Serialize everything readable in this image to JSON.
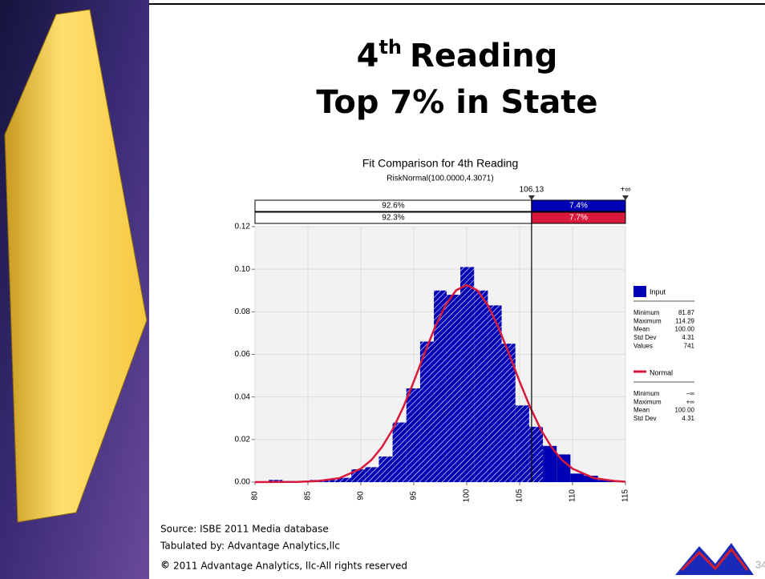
{
  "slide": {
    "title": {
      "ordinal": "4",
      "suffix": "th",
      "rest": "Reading",
      "line2": "Top 7% in State"
    },
    "source": "Source: ISBE 2011 Media database",
    "tabulated": "Tabulated by: Advantage Analytics,llc",
    "copyright_symbol": "©",
    "copyright": "2011 Advantage Analytics, llc-All rights reserved",
    "page_number": "34"
  },
  "chart_data": {
    "type": "histogram",
    "title": "Fit Comparison for 4th Reading",
    "subtitle": "RiskNormal(100.0000,4.3071)",
    "bins": [
      80,
      81.3,
      82.6,
      83.9,
      85.2,
      86.5,
      87.8,
      89.1,
      90.4,
      91.7,
      93,
      94.3,
      95.6,
      96.9,
      98.1,
      99.4,
      100.7,
      102,
      103.3,
      104.6,
      105.9,
      107.2,
      108.5,
      109.8,
      111.1,
      112.4,
      113.7,
      115
    ],
    "series": [
      {
        "name": "Input",
        "color": "#0000b4",
        "values": [
          0,
          0.001,
          0.0005,
          0,
          0.001,
          0.001,
          0.002,
          0.006,
          0.007,
          0.012,
          0.028,
          0.044,
          0.066,
          0.09,
          0.088,
          0.101,
          0.09,
          0.083,
          0.065,
          0.036,
          0.026,
          0.017,
          0.013,
          0.004,
          0.003,
          0.001,
          0.0005
        ]
      },
      {
        "name": "Normal",
        "color": "#d7193c",
        "x": [
          80,
          84,
          86,
          88,
          90,
          91,
          92,
          93,
          94,
          95,
          96,
          97,
          98,
          99,
          100,
          101,
          102,
          103,
          104,
          105,
          106,
          107,
          108,
          109,
          110,
          112,
          114,
          115
        ],
        "values": [
          0,
          0.0001,
          0.0005,
          0.0019,
          0.0063,
          0.0104,
          0.0165,
          0.0247,
          0.0351,
          0.0472,
          0.0602,
          0.0727,
          0.0831,
          0.0901,
          0.0926,
          0.0901,
          0.0831,
          0.0727,
          0.0602,
          0.0472,
          0.0351,
          0.0247,
          0.0165,
          0.0104,
          0.0063,
          0.0019,
          0.0005,
          0.0002
        ]
      }
    ],
    "xlim": [
      80,
      115
    ],
    "xticks": [
      80,
      85,
      90,
      95,
      100,
      105,
      110,
      115
    ],
    "ylim": [
      0,
      0.12
    ],
    "yticks": [
      {
        "value": 0,
        "label": "0.00"
      },
      {
        "value": 0.02,
        "label": "0.02"
      },
      {
        "value": 0.04,
        "label": "0.04"
      },
      {
        "value": 0.06,
        "label": "0.06"
      },
      {
        "value": 0.08,
        "label": "0.08"
      },
      {
        "value": 0.1,
        "label": "0.10"
      },
      {
        "value": 0.12,
        "label": "0.12"
      }
    ],
    "grid": true,
    "delimiter": {
      "x": 106.13,
      "right_label": "+∞",
      "bars": [
        {
          "left": "92.6%",
          "right": "7.4%"
        },
        {
          "left": "92.3%",
          "right": "7.7%"
        }
      ]
    },
    "legend_stats": [
      [
        [
          "Minimum",
          "81.87"
        ],
        [
          "Maximum",
          "114.29"
        ],
        [
          "Mean",
          "100.00"
        ],
        [
          "Std Dev",
          "4.31"
        ],
        [
          "Values",
          "741"
        ]
      ],
      [
        [
          "Minimum",
          "−∞"
        ],
        [
          "Maximum",
          "+∞"
        ],
        [
          "Mean",
          "100.00"
        ],
        [
          "Std Dev",
          "4.31"
        ]
      ]
    ]
  }
}
